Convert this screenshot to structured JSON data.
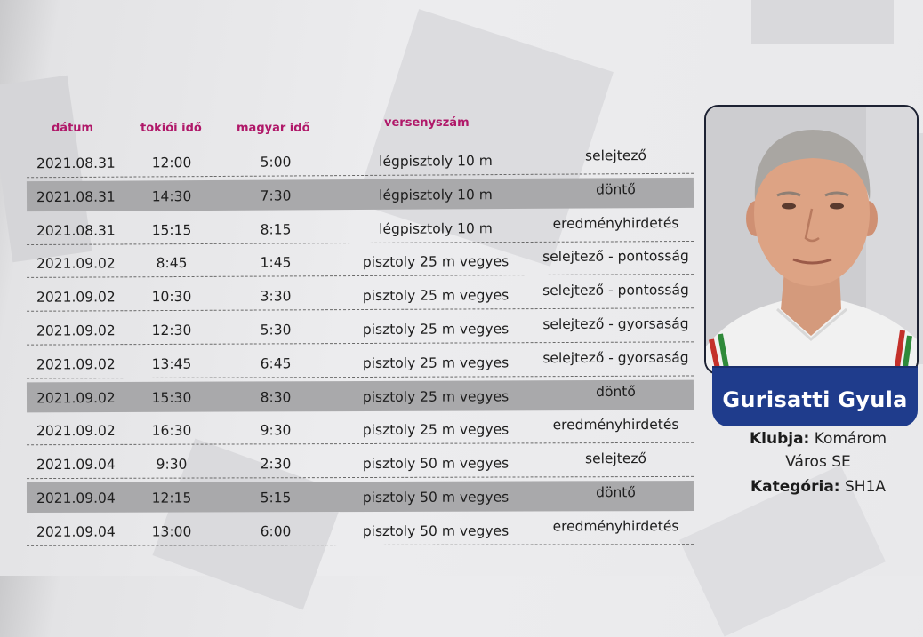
{
  "headers": {
    "date": "dátum",
    "tokyo_time": "tokiói idő",
    "hungarian_time": "magyar idő",
    "event": "versenyszám"
  },
  "rows": [
    {
      "date": "2021.08.31",
      "tokyo": "12:00",
      "hu": "5:00",
      "event": "légpisztoly 10 m",
      "phase": "selejtező",
      "highlight": false
    },
    {
      "date": "2021.08.31",
      "tokyo": "14:30",
      "hu": "7:30",
      "event": "légpisztoly 10 m",
      "phase": "döntő",
      "highlight": true
    },
    {
      "date": "2021.08.31",
      "tokyo": "15:15",
      "hu": "8:15",
      "event": "légpisztoly 10 m",
      "phase": "eredményhirdetés",
      "highlight": false
    },
    {
      "date": "2021.09.02",
      "tokyo": "8:45",
      "hu": "1:45",
      "event": "pisztoly 25 m vegyes",
      "phase": "selejtező - pontosság",
      "highlight": false
    },
    {
      "date": "2021.09.02",
      "tokyo": "10:30",
      "hu": "3:30",
      "event": "pisztoly 25 m vegyes",
      "phase": "selejtező - pontosság",
      "highlight": false
    },
    {
      "date": "2021.09.02",
      "tokyo": "12:30",
      "hu": "5:30",
      "event": "pisztoly 25 m vegyes",
      "phase": "selejtező - gyorsaság",
      "highlight": false
    },
    {
      "date": "2021.09.02",
      "tokyo": "13:45",
      "hu": "6:45",
      "event": "pisztoly 25 m vegyes",
      "phase": "selejtező - gyorsaság",
      "highlight": false
    },
    {
      "date": "2021.09.02",
      "tokyo": "15:30",
      "hu": "8:30",
      "event": "pisztoly 25 m vegyes",
      "phase": "döntő",
      "highlight": true
    },
    {
      "date": "2021.09.02",
      "tokyo": "16:30",
      "hu": "9:30",
      "event": "pisztoly 25 m vegyes",
      "phase": "eredményhirdetés",
      "highlight": false
    },
    {
      "date": "2021.09.04",
      "tokyo": "9:30",
      "hu": "2:30",
      "event": "pisztoly 50 m vegyes",
      "phase": "selejtező",
      "highlight": false
    },
    {
      "date": "2021.09.04",
      "tokyo": "12:15",
      "hu": "5:15",
      "event": "pisztoly 50 m vegyes",
      "phase": "döntő",
      "highlight": true
    },
    {
      "date": "2021.09.04",
      "tokyo": "13:00",
      "hu": "6:00",
      "event": "pisztoly 50 m vegyes",
      "phase": "eredményhirdetés",
      "highlight": false
    }
  ],
  "athlete": {
    "name": "Gurisatti Gyula",
    "club_label": "Klubja:",
    "club_value_line1": "Komárom",
    "club_value_line2": "Város SE",
    "category_label": "Kategória:",
    "category_value": "SH1A"
  },
  "colors": {
    "header_text": "#b01869",
    "highlight_row": "#a9a9ab",
    "name_plate": "#1f3c8c"
  }
}
